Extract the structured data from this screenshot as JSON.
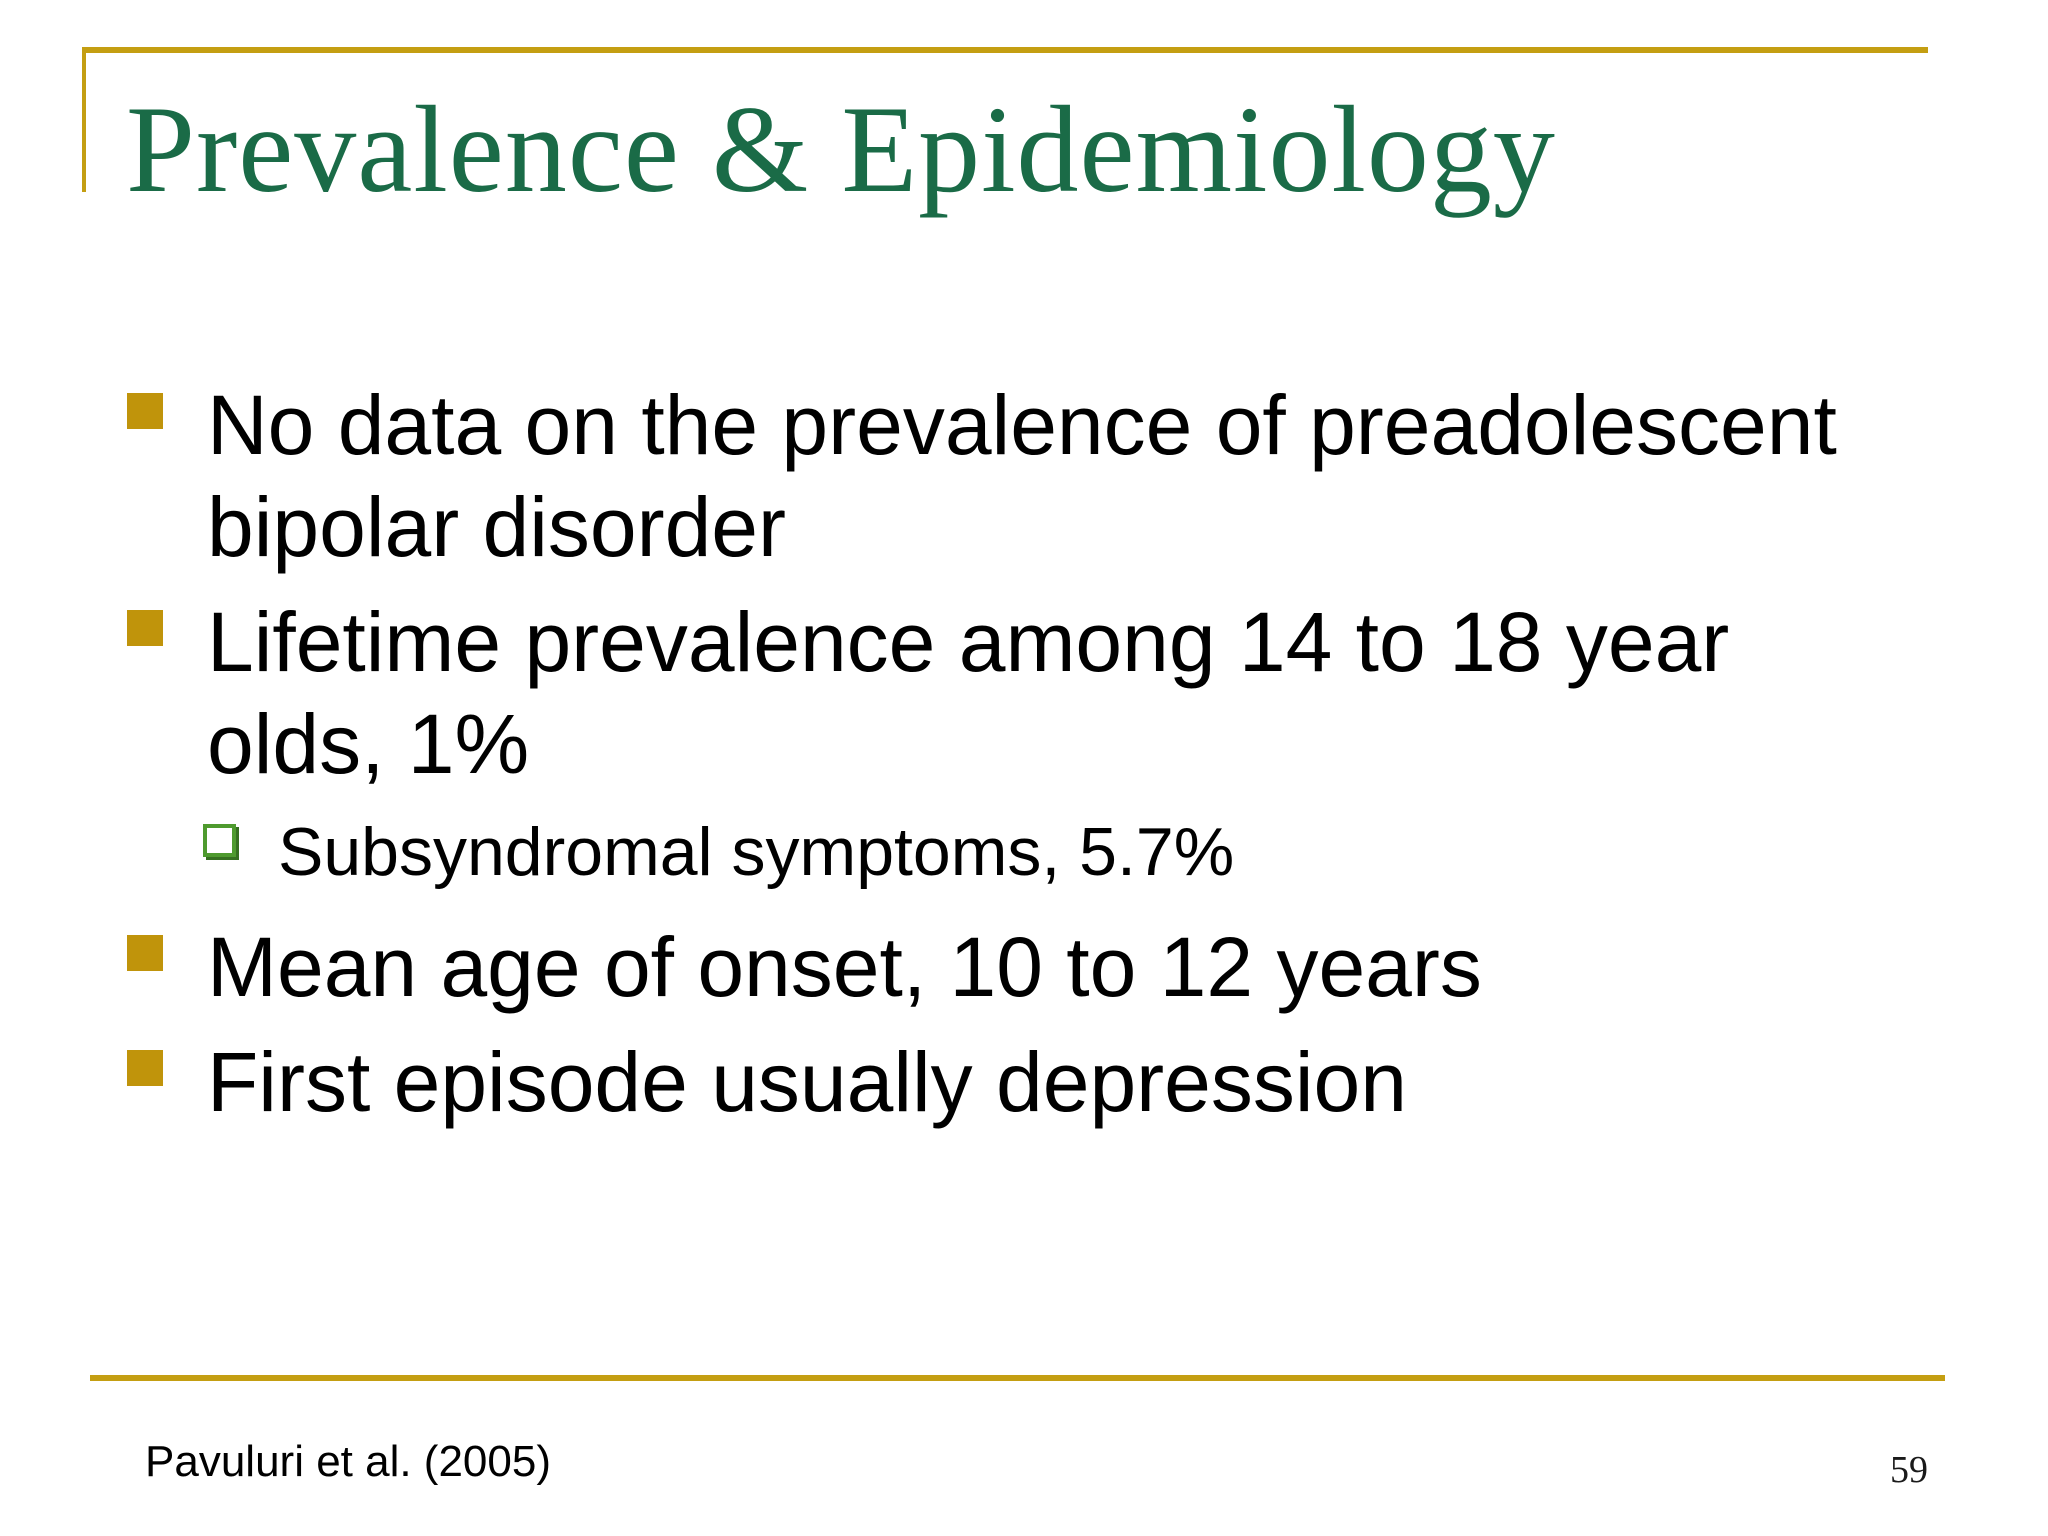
{
  "slide": {
    "title": "Prevalence & Epidemiology",
    "bullets": [
      {
        "level": 1,
        "text": "No data on the prevalence of preadolescent\nbipolar disorder"
      },
      {
        "level": 1,
        "text": "Lifetime prevalence among 14 to 18 year\nolds, 1%"
      },
      {
        "level": 2,
        "text": "Subsyndromal symptoms, 5.7%"
      },
      {
        "level": 1,
        "text": "Mean age of onset, 10 to 12 years"
      },
      {
        "level": 1,
        "text": "First episode usually depression"
      }
    ],
    "footer": {
      "citation": "Pavuluri et al. (2005)",
      "page_number": "59"
    },
    "colors": {
      "title_green": "#1A6B47",
      "bullet_gold": "#C0940B",
      "rule_gold": "#C49E12",
      "sub_bullet_green": "#4E9A2E",
      "body_text": "#000000"
    }
  }
}
